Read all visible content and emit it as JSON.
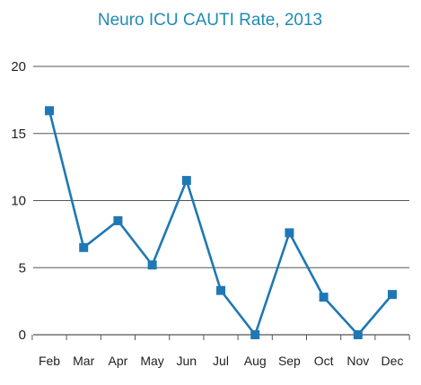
{
  "chart_data": {
    "type": "line",
    "title": "Neuro ICU CAUTI Rate, 2013",
    "xlabel": "",
    "ylabel": "",
    "categories": [
      "Feb",
      "Mar",
      "Apr",
      "May",
      "Jun",
      "Jul",
      "Aug",
      "Sep",
      "Oct",
      "Nov",
      "Dec"
    ],
    "series": [
      {
        "values": [
          16.7,
          6.5,
          8.5,
          5.2,
          11.5,
          3.3,
          0,
          7.6,
          2.8,
          0,
          3.0
        ]
      }
    ],
    "ylim": [
      0,
      20
    ],
    "yticks": [
      0,
      5,
      10,
      15,
      20
    ],
    "grid": true,
    "legend": "none",
    "marker": "square"
  },
  "colors": {
    "title": "#1f8bb4",
    "series": "#1f78b4",
    "grid": "#555555",
    "axis": "#555555"
  }
}
